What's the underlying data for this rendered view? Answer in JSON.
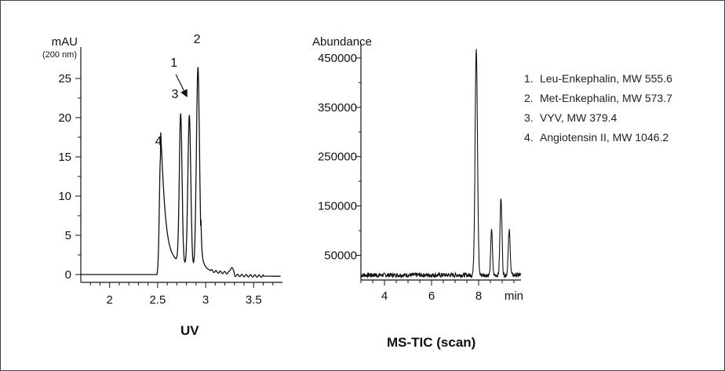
{
  "chart_data": [
    {
      "type": "line",
      "title": "UV",
      "ylabel": "mAU",
      "ylabel_unit": "(200 nm)",
      "xlim": [
        1.7,
        3.8
      ],
      "ylim": [
        -1,
        29
      ],
      "x_ticks": [
        2,
        2.5,
        3,
        3.5
      ],
      "x_tick_labels": [
        "2",
        "2.5",
        "3",
        "3.5"
      ],
      "y_ticks": [
        0,
        5,
        10,
        15,
        20,
        25
      ],
      "y_tick_labels": [
        "0",
        "5",
        "10",
        "15",
        "20",
        "25"
      ],
      "grid": false,
      "baseline": 0,
      "peaks": [
        {
          "label": "4",
          "x": 2.53,
          "y": 15
        },
        {
          "label": "3",
          "x": 2.74,
          "y": 22
        },
        {
          "label": "1",
          "x": 2.83,
          "y": 22
        },
        {
          "label": "2",
          "x": 2.92,
          "y": 28.5
        }
      ],
      "annotations": [
        {
          "text": "4",
          "x": 2.51,
          "y": 16.5
        },
        {
          "text": "3",
          "x": 2.68,
          "y": 22.5
        },
        {
          "text": "1",
          "x": 2.67,
          "y": 26.5
        },
        {
          "text": "2",
          "x": 2.91,
          "y": 29.5
        }
      ]
    },
    {
      "type": "line",
      "title": "MS-TIC (scan)",
      "ylabel": "Abundance",
      "xlabel": "min",
      "xlim": [
        3,
        9.8
      ],
      "ylim": [
        0,
        480000
      ],
      "x_ticks": [
        4,
        6,
        8
      ],
      "x_tick_labels": [
        "4",
        "6",
        "8"
      ],
      "y_ticks": [
        50000,
        150000,
        250000,
        350000,
        450000
      ],
      "y_tick_labels": [
        "50000",
        "150000",
        "250000",
        "350000",
        "450000"
      ],
      "grid": false,
      "baseline": 10000,
      "peaks": [
        {
          "x": 7.9,
          "y": 470000
        },
        {
          "x": 8.55,
          "y": 105000
        },
        {
          "x": 8.95,
          "y": 168000
        },
        {
          "x": 9.3,
          "y": 100000
        }
      ]
    }
  ],
  "legend": [
    {
      "num": "1.",
      "text": "Leu-Enkephalin, MW 555.6"
    },
    {
      "num": "2.",
      "text": "Met-Enkephalin, MW 573.7"
    },
    {
      "num": "3.",
      "text": "VYV, MW 379.4"
    },
    {
      "num": "4.",
      "text": "Angiotensin II, MW 1046.2"
    }
  ],
  "colors": {
    "trace": "#111111",
    "axis": "#111111",
    "border": "#444444"
  }
}
